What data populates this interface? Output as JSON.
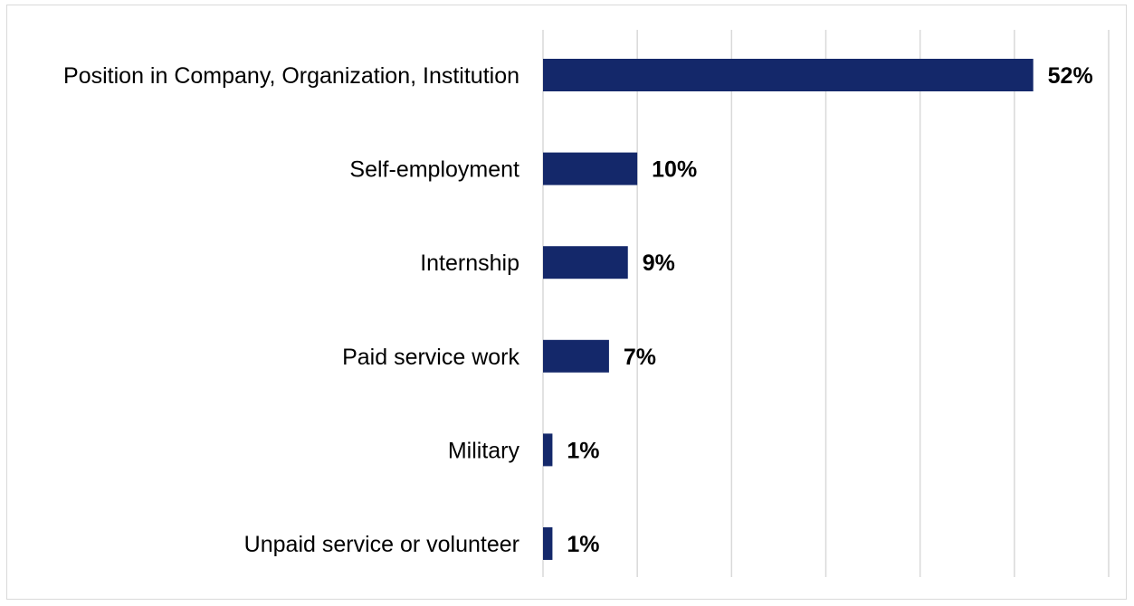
{
  "chart_data": {
    "type": "bar",
    "orientation": "horizontal",
    "categories": [
      "Position in Company, Organization, Institution",
      "Self-employment",
      "Internship",
      "Paid service work",
      "Military",
      "Unpaid service or volunteer"
    ],
    "values": [
      52,
      10,
      9,
      7,
      1,
      1
    ],
    "value_labels": [
      "52%",
      "10%",
      "9%",
      "7%",
      "1%",
      "1%"
    ],
    "title": "",
    "xlabel": "",
    "ylabel": "",
    "xlim": [
      0,
      60
    ],
    "grid": "vertical",
    "legend": "none",
    "bar_color": "#14286a",
    "grid_color": "#d9d9d9"
  }
}
